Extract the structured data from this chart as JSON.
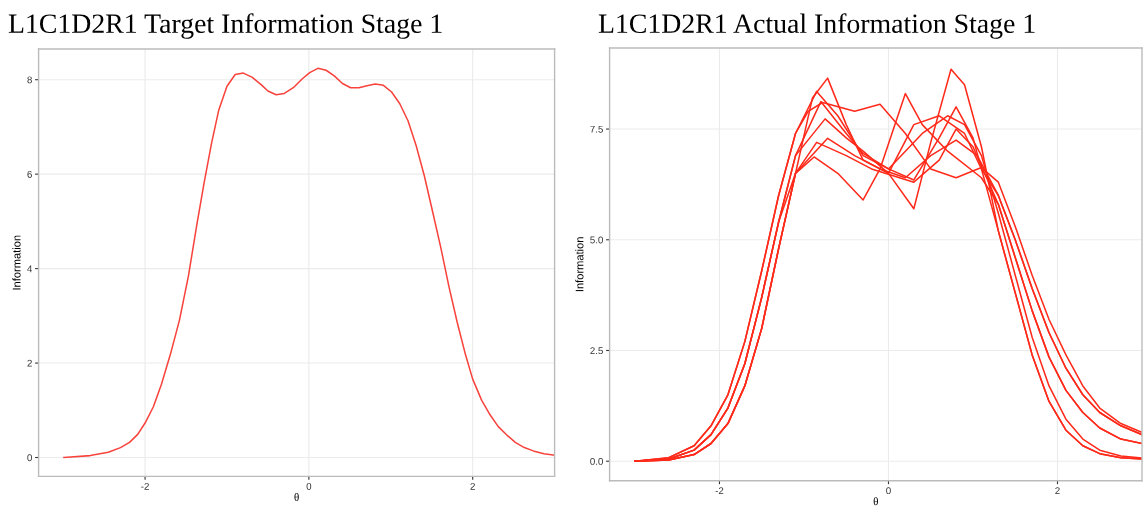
{
  "chart_data": [
    {
      "type": "line",
      "title": "L1C1D2R1 Target Information Stage 1",
      "xlabel": "θ",
      "ylabel": "Information",
      "xlim": [
        -3.3,
        3.0
      ],
      "ylim": [
        -0.4,
        8.65
      ],
      "xticks": [
        -2,
        0,
        2
      ],
      "yticks": [
        0,
        2,
        4,
        6,
        8
      ],
      "grid": true,
      "legend": false,
      "series": [
        {
          "color": "#f8433c",
          "x": [
            -2.99,
            -2.67,
            -2.45,
            -2.3,
            -2.19,
            -2.09,
            -2.0,
            -1.9,
            -1.8,
            -1.69,
            -1.58,
            -1.47,
            -1.37,
            -1.28,
            -1.19,
            -1.1,
            -1.0,
            -0.9,
            -0.8,
            -0.69,
            -0.58,
            -0.5,
            -0.4,
            -0.3,
            -0.19,
            -0.08,
            0.01,
            0.11,
            0.21,
            0.31,
            0.41,
            0.51,
            0.61,
            0.71,
            0.81,
            0.91,
            1.01,
            1.11,
            1.21,
            1.31,
            1.41,
            1.51,
            1.61,
            1.71,
            1.81,
            1.91,
            2.0,
            2.11,
            2.21,
            2.31,
            2.42,
            2.52,
            2.63,
            2.74,
            2.87,
            3.0
          ],
          "values": [
            0,
            0.04,
            0.11,
            0.21,
            0.32,
            0.49,
            0.73,
            1.07,
            1.55,
            2.19,
            2.91,
            3.85,
            4.91,
            5.81,
            6.64,
            7.36,
            7.86,
            8.11,
            8.14,
            8.05,
            7.89,
            7.76,
            7.68,
            7.71,
            7.83,
            8.02,
            8.15,
            8.24,
            8.2,
            8.08,
            7.92,
            7.83,
            7.83,
            7.87,
            7.91,
            7.88,
            7.74,
            7.49,
            7.13,
            6.6,
            5.96,
            5.21,
            4.45,
            3.62,
            2.87,
            2.19,
            1.66,
            1.21,
            0.91,
            0.66,
            0.47,
            0.32,
            0.21,
            0.14,
            0.08,
            0.05
          ]
        }
      ]
    },
    {
      "type": "line",
      "title": "L1C1D2R1 Actual Information Stage 1",
      "xlabel": "θ",
      "ylabel": "Information",
      "xlim": [
        -3.3,
        3.0
      ],
      "ylim": [
        -0.44,
        9.33
      ],
      "xticks": [
        -2,
        0,
        2
      ],
      "yticks": [
        {
          "value": 0,
          "label": "0.0"
        },
        {
          "value": 2.5,
          "label": "2.5"
        },
        {
          "value": 5,
          "label": "5.0"
        },
        {
          "value": 7.5,
          "label": "7.5"
        }
      ],
      "grid": true,
      "legend": false,
      "series": [
        {
          "color": "#ff2a1a",
          "x": [
            -3,
            -2.6,
            -2.3,
            -2.1,
            -1.9,
            -1.7,
            -1.5,
            -1.3,
            -1.1,
            -0.9,
            -0.72,
            -0.5,
            -0.3,
            0,
            0.3,
            0.5,
            0.74,
            0.9,
            1.1,
            1.3,
            1.5,
            1.7,
            1.9,
            2.1,
            2.3,
            2.5,
            2.75,
            3.0
          ],
          "values": [
            0,
            0.03,
            0.15,
            0.4,
            0.85,
            1.7,
            3.0,
            4.8,
            6.5,
            8.2,
            8.65,
            7.6,
            6.8,
            6.5,
            5.7,
            7.2,
            8.85,
            8.5,
            7.1,
            5.2,
            3.8,
            2.4,
            1.35,
            0.7,
            0.35,
            0.17,
            0.08,
            0.05
          ]
        },
        {
          "color": "#ff2a1a",
          "x": [
            -3,
            -2.6,
            -2.3,
            -2.1,
            -1.9,
            -1.7,
            -1.5,
            -1.3,
            -1.1,
            -0.88,
            -0.6,
            -0.3,
            -0.1,
            0.2,
            0.4,
            0.7,
            1.1,
            1.3,
            1.5,
            1.7,
            1.9,
            2.1,
            2.3,
            2.5,
            2.75,
            3.0
          ],
          "values": [
            0,
            0.05,
            0.25,
            0.6,
            1.2,
            2.2,
            3.7,
            5.4,
            6.5,
            6.87,
            6.5,
            5.9,
            6.6,
            8.3,
            7.6,
            7.0,
            6.4,
            5.8,
            4.6,
            3.4,
            2.35,
            1.6,
            1.1,
            0.75,
            0.5,
            0.4
          ]
        },
        {
          "color": "#ff2a1a",
          "x": [
            -3,
            -2.6,
            -2.3,
            -2.1,
            -1.9,
            -1.7,
            -1.5,
            -1.3,
            -1.1,
            -0.95,
            -0.78,
            -0.4,
            -0.1,
            0.2,
            0.5,
            0.8,
            1.1,
            1.3,
            1.5,
            1.7,
            1.9,
            2.1,
            2.3,
            2.5,
            2.75,
            3.0
          ],
          "values": [
            0,
            0.08,
            0.35,
            0.8,
            1.5,
            2.7,
            4.3,
            6.0,
            7.4,
            7.9,
            8.1,
            7.9,
            8.06,
            7.4,
            6.6,
            6.4,
            6.63,
            6.3,
            5.3,
            4.2,
            3.2,
            2.4,
            1.7,
            1.2,
            0.85,
            0.65
          ]
        },
        {
          "color": "#ff2a1a",
          "x": [
            -3,
            -2.6,
            -2.3,
            -2.1,
            -1.9,
            -1.7,
            -1.5,
            -1.3,
            -1.1,
            -0.85,
            -0.6,
            -0.3,
            0,
            0.4,
            0.7,
            0.9,
            1.1,
            1.3,
            1.5,
            1.7,
            1.9,
            2.1,
            2.3,
            2.5,
            2.75,
            3.0
          ],
          "values": [
            0,
            0.08,
            0.35,
            0.8,
            1.5,
            2.7,
            4.3,
            6.0,
            7.4,
            8.35,
            7.8,
            6.9,
            6.6,
            7.4,
            7.8,
            7.6,
            6.9,
            5.6,
            4.2,
            2.8,
            1.7,
            0.95,
            0.5,
            0.25,
            0.12,
            0.07
          ]
        },
        {
          "color": "#ff2a1a",
          "x": [
            -3,
            -2.6,
            -2.3,
            -2.1,
            -1.9,
            -1.7,
            -1.5,
            -1.3,
            -1.1,
            -0.75,
            -0.5,
            -0.3,
            0,
            0.3,
            0.6,
            0.9,
            1.1,
            1.3,
            1.5,
            1.7,
            1.9,
            2.1,
            2.3,
            2.5,
            2.75,
            3.0
          ],
          "values": [
            0,
            0.05,
            0.25,
            0.6,
            1.2,
            2.2,
            3.7,
            5.4,
            6.9,
            7.73,
            7.3,
            7.0,
            6.5,
            7.6,
            7.8,
            7.4,
            6.6,
            6.0,
            5.0,
            3.9,
            2.9,
            2.1,
            1.5,
            1.1,
            0.8,
            0.6
          ]
        },
        {
          "color": "#ff2a1a",
          "x": [
            -3,
            -2.6,
            -2.3,
            -2.1,
            -1.9,
            -1.7,
            -1.5,
            -1.3,
            -1.1,
            -0.85,
            -0.5,
            -0.2,
            0.3,
            0.6,
            0.8,
            1.0,
            1.3,
            1.5,
            1.7,
            1.9,
            2.1,
            2.3,
            2.5,
            2.75,
            3.0
          ],
          "values": [
            0,
            0.03,
            0.15,
            0.4,
            0.85,
            1.7,
            3.0,
            4.8,
            6.5,
            7.2,
            6.9,
            6.6,
            6.3,
            6.8,
            7.5,
            7.1,
            5.8,
            4.6,
            3.4,
            2.35,
            1.6,
            1.1,
            0.75,
            0.5,
            0.4
          ]
        },
        {
          "color": "#ff2a1a",
          "x": [
            -3,
            -2.6,
            -2.3,
            -2.1,
            -1.9,
            -1.7,
            -1.5,
            -1.3,
            -1.1,
            -0.8,
            -0.5,
            -0.3,
            0,
            0.3,
            0.6,
            0.8,
            1.0,
            1.3,
            1.5,
            1.7,
            1.9,
            2.1,
            2.3,
            2.5,
            2.75,
            3.0
          ],
          "values": [
            0,
            0.05,
            0.25,
            0.6,
            1.2,
            2.2,
            3.7,
            5.4,
            6.9,
            8.12,
            7.4,
            6.95,
            6.6,
            6.35,
            7.3,
            8.0,
            7.3,
            5.2,
            3.8,
            2.4,
            1.35,
            0.7,
            0.35,
            0.17,
            0.08,
            0.05
          ]
        },
        {
          "color": "#ff2a1a",
          "x": [
            -3,
            -2.6,
            -2.3,
            -2.1,
            -1.9,
            -1.7,
            -1.5,
            -1.3,
            -1.1,
            -0.72,
            -0.4,
            -0.1,
            0.2,
            0.5,
            0.8,
            1.05,
            1.3,
            1.5,
            1.7,
            1.9,
            2.1,
            2.3,
            2.5,
            2.75,
            3.0
          ],
          "values": [
            0,
            0.03,
            0.15,
            0.4,
            0.85,
            1.7,
            3.0,
            4.8,
            6.5,
            7.29,
            6.9,
            6.6,
            6.4,
            6.9,
            7.25,
            6.9,
            6.0,
            5.0,
            3.9,
            2.9,
            2.1,
            1.5,
            1.1,
            0.8,
            0.6
          ]
        }
      ]
    }
  ]
}
